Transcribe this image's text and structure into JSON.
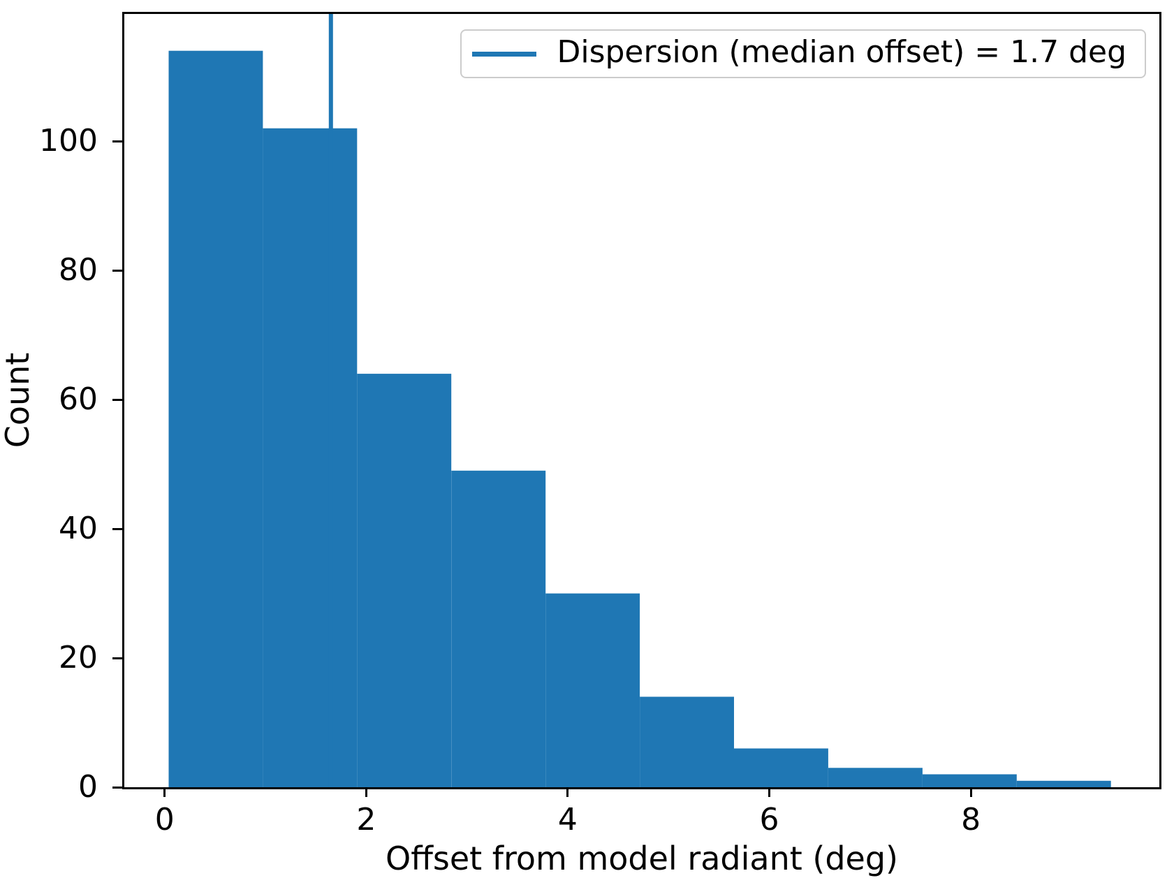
{
  "chart_data": {
    "type": "histogram",
    "xlabel": "Offset from model radiant (deg)",
    "ylabel": "Count",
    "bin_edges": [
      0.04,
      0.975,
      1.91,
      2.845,
      3.78,
      4.715,
      5.65,
      6.585,
      7.52,
      8.455,
      9.39
    ],
    "counts": [
      114,
      102,
      64,
      49,
      30,
      14,
      6,
      3,
      2,
      1
    ],
    "x_ticks": [
      0,
      2,
      4,
      6,
      8
    ],
    "y_ticks": [
      0,
      20,
      40,
      60,
      80,
      100
    ],
    "xlim": [
      -0.4,
      9.87
    ],
    "ylim": [
      0,
      119.7
    ],
    "median_line": {
      "x": 1.65,
      "value_deg": 1.7
    },
    "bar_color": "#1f77b4",
    "line_color": "#1f77b4",
    "grid": false,
    "legend": {
      "position": "upper right",
      "label": "Dispersion (median offset) = 1.7 deg"
    }
  }
}
